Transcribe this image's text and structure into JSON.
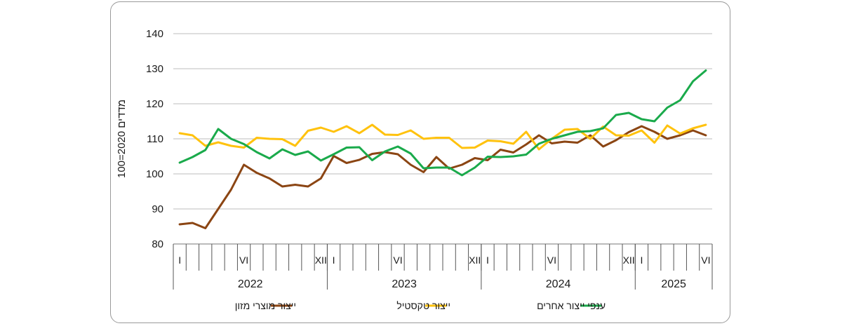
{
  "chart_data": {
    "type": "line",
    "ylabel": "מדדים 2020=100",
    "ylim": [
      80,
      140
    ],
    "yticks": [
      80,
      90,
      100,
      110,
      120,
      130,
      140
    ],
    "grid": true,
    "legend_position": "bottom",
    "month_labels": {
      "0": "I",
      "5": "VI",
      "11": "XII"
    },
    "years": [
      {
        "label": "2022",
        "months": 12
      },
      {
        "label": "2023",
        "months": 12
      },
      {
        "label": "2024",
        "months": 12
      },
      {
        "label": "2025",
        "months": 6
      }
    ],
    "series": [
      {
        "name": "ייצור מוצרי מזון",
        "color": "#8B4513",
        "values": [
          85.6,
          86.0,
          84.5,
          90.0,
          95.5,
          102.6,
          100.3,
          98.7,
          96.4,
          96.9,
          96.4,
          98.7,
          105.1,
          103.1,
          104.0,
          105.7,
          106.2,
          105.6,
          102.6,
          100.5,
          104.8,
          101.5,
          102.6,
          104.5,
          103.9,
          106.9,
          106.1,
          108.4,
          111.0,
          108.7,
          109.2,
          108.9,
          111.0,
          107.8,
          109.6,
          111.9,
          113.6,
          112.0,
          110.0,
          111.0,
          112.4,
          111.0
        ]
      },
      {
        "name": "ייצור טקסטיל",
        "color": "#FFC20E",
        "values": [
          111.6,
          111.0,
          108.0,
          109.0,
          108.0,
          107.5,
          110.3,
          110.0,
          109.9,
          108.0,
          112.3,
          113.2,
          112.0,
          113.6,
          111.6,
          114.0,
          111.2,
          111.1,
          112.4,
          110.0,
          110.3,
          110.3,
          107.4,
          107.5,
          109.5,
          109.3,
          108.6,
          112.0,
          107.0,
          110.0,
          112.6,
          112.8,
          110.0,
          113.5,
          111.0,
          110.9,
          112.4,
          108.9,
          113.8,
          111.5,
          113.0,
          114.0
        ]
      },
      {
        "name": "ענפי ייצור אחרים",
        "color": "#1AAA4B",
        "values": [
          103.2,
          104.8,
          106.8,
          112.8,
          110.0,
          108.5,
          106.2,
          104.4,
          107.0,
          105.4,
          106.4,
          103.8,
          105.6,
          107.5,
          107.6,
          103.9,
          106.4,
          107.8,
          105.8,
          101.6,
          101.8,
          101.8,
          99.6,
          101.8,
          104.9,
          104.8,
          105.0,
          105.5,
          108.6,
          110.0,
          111.0,
          112.0,
          112.2,
          113.0,
          116.8,
          117.4,
          115.6,
          115.0,
          118.9,
          121.0,
          126.4,
          129.5
        ]
      }
    ]
  }
}
